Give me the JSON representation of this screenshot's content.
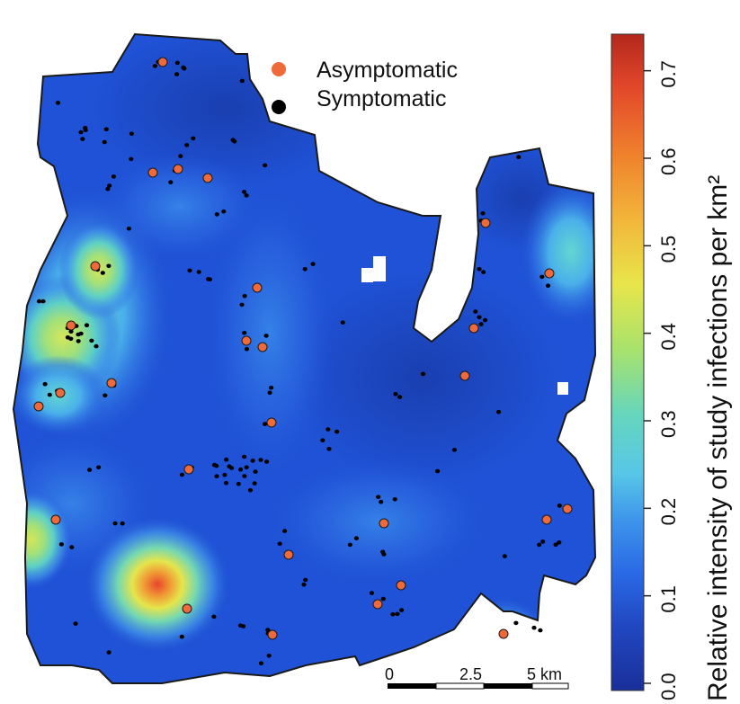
{
  "legend": {
    "items": [
      {
        "label": "Asymptomatic",
        "color": "#ef6a3a"
      },
      {
        "label": "Symptomatic",
        "color": "#000000"
      }
    ]
  },
  "colorbar": {
    "title": "Relative intensity of study infections per km²",
    "range": [
      0.0,
      0.75
    ],
    "ticks": [
      "0.0",
      "0.1",
      "0.2",
      "0.3",
      "0.4",
      "0.5",
      "0.6",
      "0.7"
    ],
    "palette": [
      "#203aa8",
      "#2458d4",
      "#3b86e6",
      "#4fb6ea",
      "#6cd6d2",
      "#a9e27a",
      "#e8e84a",
      "#f2b33c",
      "#ef7b2c",
      "#e0402a",
      "#b8281e"
    ]
  },
  "scale_bar": {
    "labels": [
      "0",
      "2.5",
      "5 km"
    ]
  },
  "map": {
    "background_color": "#1e50d8",
    "hotspot_colors": {
      "low": "#2a6ae6",
      "mid": "#52c6e2",
      "high": "#c9e65a",
      "peak": "#e8452c"
    }
  }
}
